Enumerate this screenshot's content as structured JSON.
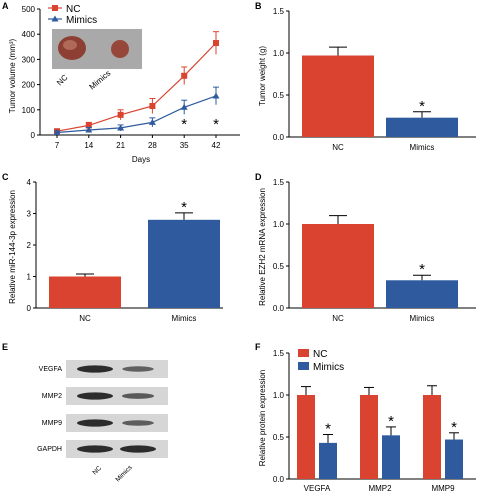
{
  "colors": {
    "nc": "#d9432f",
    "mimics": "#2f5b9e",
    "axis": "#000000",
    "blot_bg": "#d6d6d6",
    "band": "#2c2c2c"
  },
  "chart_data": [
    {
      "panel": "A",
      "type": "line",
      "x": [
        7,
        14,
        21,
        28,
        35,
        42
      ],
      "series": [
        {
          "name": "NC",
          "values": [
            15,
            38,
            80,
            115,
            235,
            365
          ],
          "errors": [
            8,
            12,
            20,
            30,
            35,
            45
          ],
          "color": "#d9432f",
          "marker": "square"
        },
        {
          "name": "Mimics",
          "values": [
            10,
            20,
            28,
            50,
            110,
            155
          ],
          "errors": [
            6,
            10,
            12,
            18,
            28,
            35
          ],
          "color": "#2f5b9e",
          "marker": "triangle"
        }
      ],
      "xlabel": "Days",
      "ylabel": "Tumor volume (mm³)",
      "xticks": [
        "7",
        "14",
        "21",
        "28",
        "35",
        "42"
      ],
      "yticks": [
        "0",
        "100",
        "200",
        "300",
        "400",
        "500"
      ],
      "ylim": [
        0,
        500
      ],
      "significance": [
        {
          "x": 35,
          "label": "*"
        },
        {
          "x": 42,
          "label": "*"
        }
      ],
      "inset_labels": [
        "NC",
        "Mimics"
      ],
      "legend": "top-left"
    },
    {
      "panel": "B",
      "type": "bar",
      "categories": [
        "NC",
        "Mimics"
      ],
      "values": [
        0.97,
        0.23
      ],
      "errors": [
        0.1,
        0.07
      ],
      "colors": [
        "#d9432f",
        "#2f5b9e"
      ],
      "ylabel": "Tumor weight (g)",
      "yticks": [
        "0.0",
        "0.5",
        "1.0",
        "1.5"
      ],
      "ylim": [
        0,
        1.5
      ],
      "significance": [
        {
          "category": "Mimics",
          "label": "*"
        }
      ]
    },
    {
      "panel": "C",
      "type": "bar",
      "categories": [
        "NC",
        "Mimics"
      ],
      "values": [
        1.0,
        2.8
      ],
      "errors": [
        0.08,
        0.22
      ],
      "colors": [
        "#d9432f",
        "#2f5b9e"
      ],
      "ylabel": "Relative miR-144-3p expression",
      "yticks": [
        "0",
        "1",
        "2",
        "3",
        "4"
      ],
      "ylim": [
        0,
        4
      ],
      "significance": [
        {
          "category": "Mimics",
          "label": "*"
        }
      ]
    },
    {
      "panel": "D",
      "type": "bar",
      "categories": [
        "NC",
        "Mimics"
      ],
      "values": [
        1.0,
        0.33
      ],
      "errors": [
        0.1,
        0.06
      ],
      "colors": [
        "#d9432f",
        "#2f5b9e"
      ],
      "ylabel": "Relative EZH2 mRNA expression",
      "yticks": [
        "0.0",
        "0.5",
        "1.0",
        "1.5"
      ],
      "ylim": [
        0,
        1.5
      ],
      "significance": [
        {
          "category": "Mimics",
          "label": "*"
        }
      ]
    },
    {
      "panel": "F",
      "type": "bar",
      "categories": [
        "VEGFA",
        "MMP2",
        "MMP9"
      ],
      "series": [
        {
          "name": "NC",
          "values": [
            1.0,
            1.0,
            1.0
          ],
          "errors": [
            0.1,
            0.09,
            0.11
          ],
          "color": "#d9432f"
        },
        {
          "name": "Mimics",
          "values": [
            0.43,
            0.52,
            0.47
          ],
          "errors": [
            0.1,
            0.1,
            0.08
          ],
          "color": "#2f5b9e"
        }
      ],
      "ylabel": "Relative protein expression",
      "yticks": [
        "0.0",
        "0.5",
        "1.0",
        "1.5"
      ],
      "ylim": [
        0,
        1.5
      ],
      "significance": [
        {
          "category": "VEGFA",
          "label": "*"
        },
        {
          "category": "MMP2",
          "label": "*"
        },
        {
          "category": "MMP9",
          "label": "*"
        }
      ],
      "legend": "top-left"
    }
  ],
  "western_blot": {
    "panel": "E",
    "proteins": [
      "VEGFA",
      "MMP2",
      "MMP9",
      "GAPDH"
    ],
    "lanes": [
      "NC",
      "Mimics"
    ],
    "band_intensity": [
      [
        1.0,
        0.43
      ],
      [
        1.0,
        0.52
      ],
      [
        1.0,
        0.47
      ],
      [
        1.0,
        1.0
      ]
    ]
  }
}
